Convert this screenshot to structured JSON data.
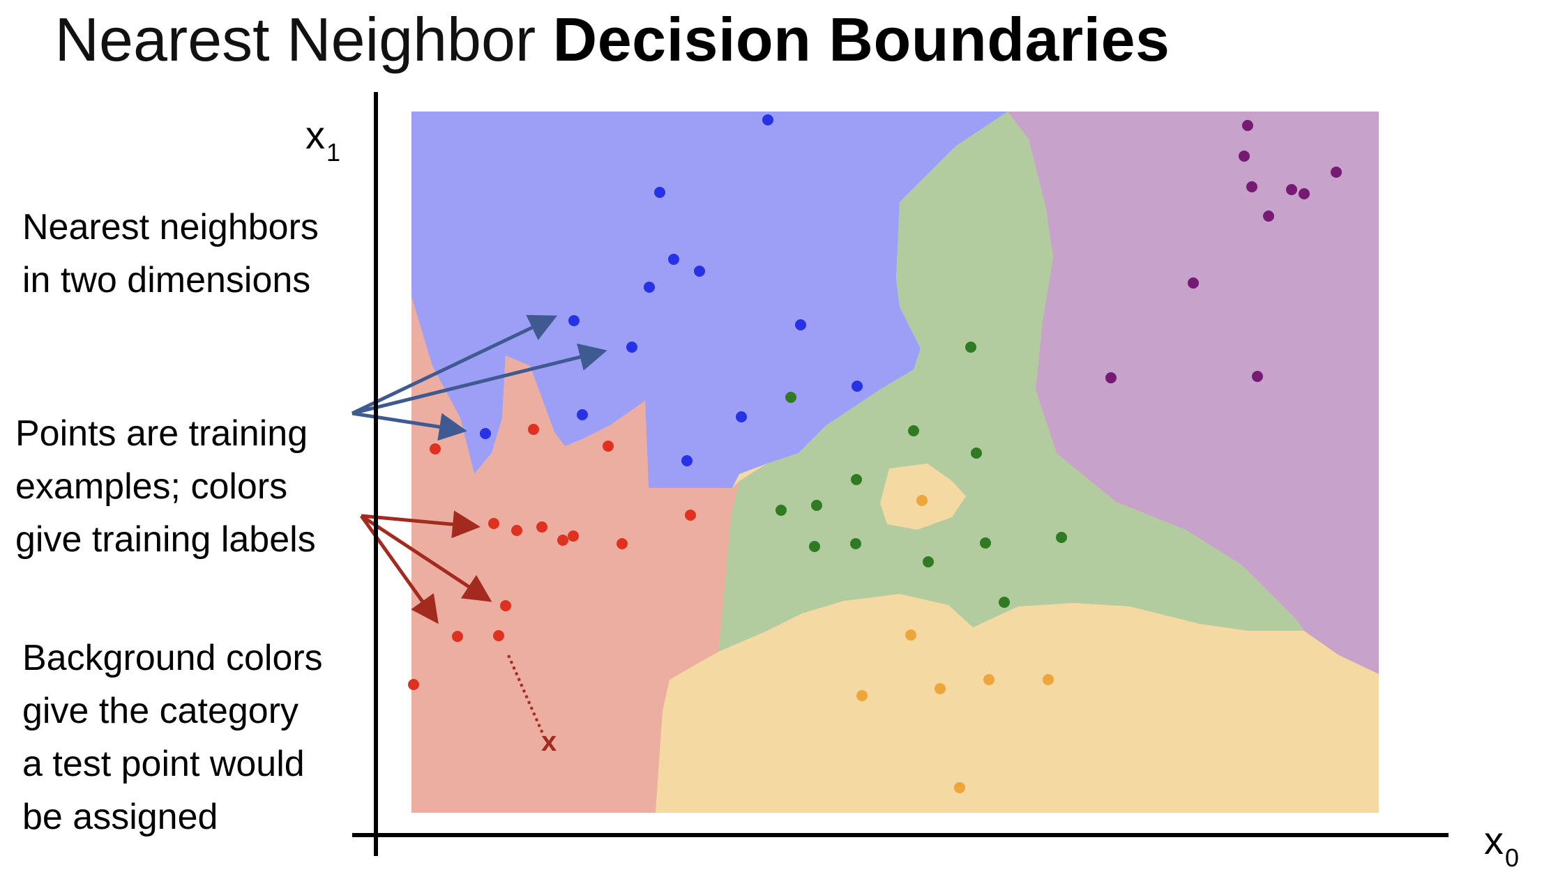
{
  "title": {
    "part1": "Nearest Neighbor",
    "part2": "Decision Boundaries"
  },
  "annotations": {
    "nn_line1": "Nearest neighbors",
    "nn_line2": "in two dimensions",
    "pts_line1": "Points are training",
    "pts_line2": "examples; colors",
    "pts_line3": "give training labels",
    "bg_line1": "Background colors",
    "bg_line2": "give the category",
    "bg_line3": "a test point would",
    "bg_line4": "be assigned"
  },
  "axes": {
    "y_base": "x",
    "y_sub": "1",
    "x_base": "x",
    "x_sub": "0"
  },
  "test_point_marker": "x",
  "colors": {
    "blue_region": "#9d9ff6",
    "green_region": "#b3cc9f",
    "purple_region": "#c7a2cb",
    "red_region": "#ecaea0",
    "orange_region": "#f4d9a2",
    "blue_point": "#2731e6",
    "green_point": "#2f7a22",
    "purple_point": "#761a74",
    "red_point": "#df3020",
    "orange_point": "#eea53a",
    "arrow_blue": "#3e5a91",
    "arrow_red": "#a32a1e"
  },
  "icons": {
    "arrow": "arrow-icon",
    "axis": "axis-line"
  }
}
